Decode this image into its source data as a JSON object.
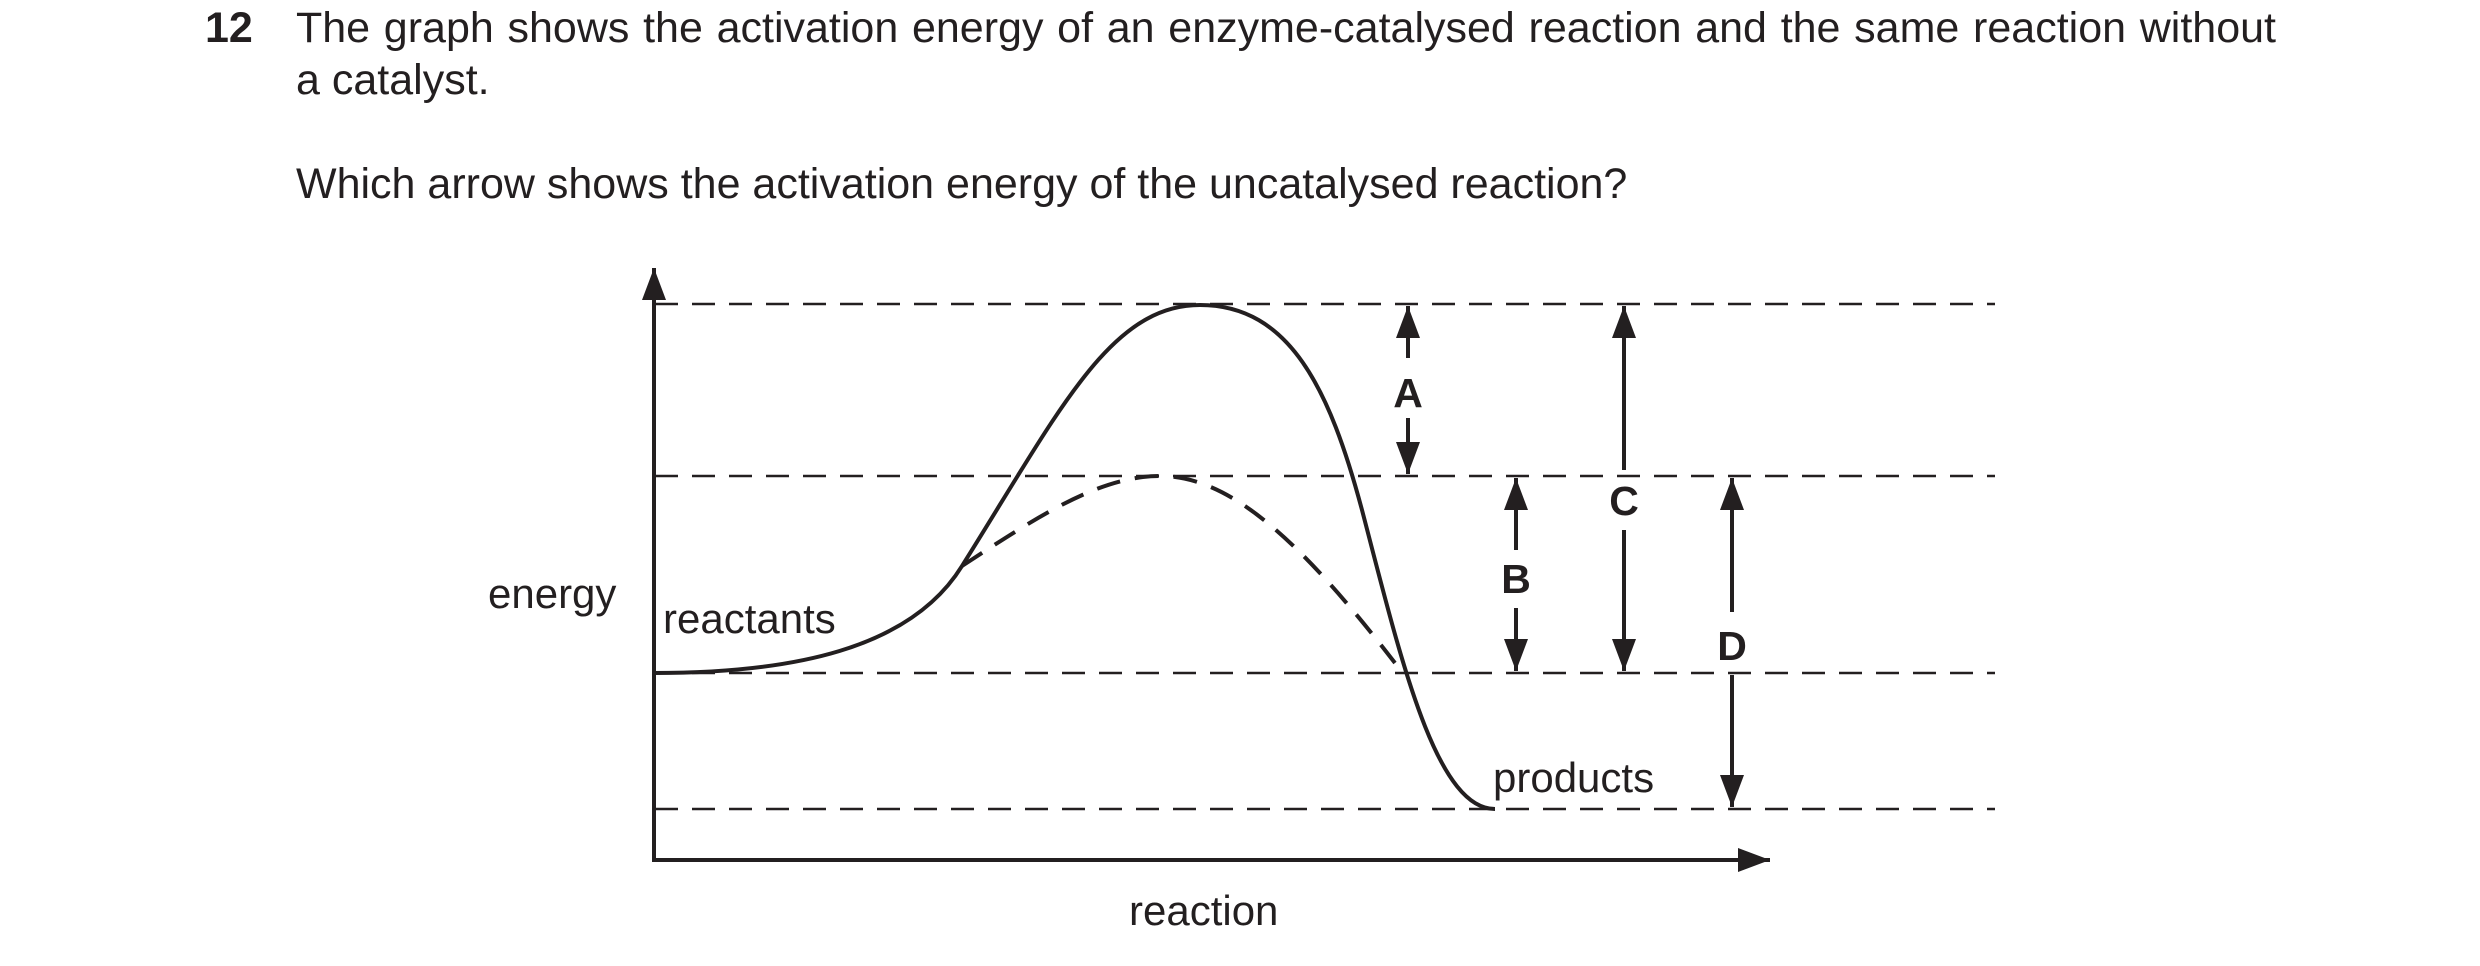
{
  "question": {
    "number": "12",
    "stem": "The graph shows the activation energy of an enzyme-catalysed reaction and the same reaction without a catalyst.",
    "prompt": "Which arrow shows the activation energy of the uncatalysed reaction?"
  },
  "diagram": {
    "y_axis_label": "energy",
    "x_axis_label": "reaction",
    "reactants_label": "reactants",
    "products_label": "products",
    "arrows": {
      "a": "A",
      "b": "B",
      "c": "C",
      "d": "D"
    },
    "colors": {
      "ink": "#231f20",
      "background": "#ffffff"
    }
  }
}
